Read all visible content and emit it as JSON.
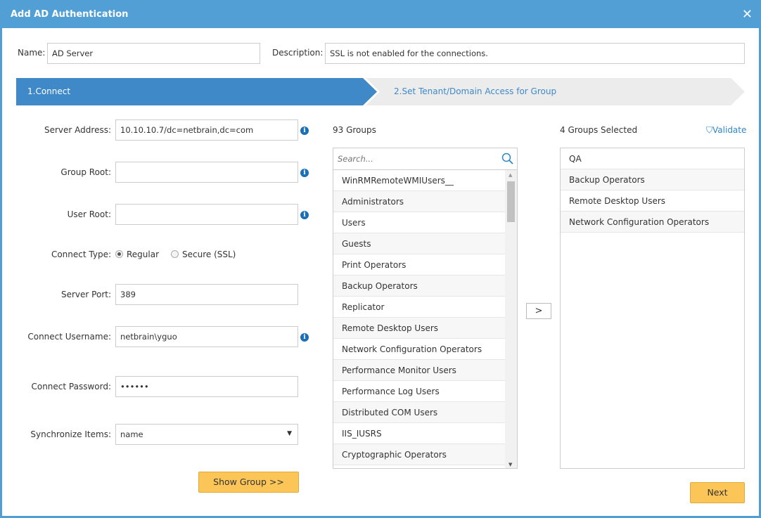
{
  "dialog": {
    "title": "Add AD Authentication",
    "close_icon": "close-icon"
  },
  "name": {
    "label": "Name:",
    "value": "AD Server"
  },
  "description": {
    "label": "Description:",
    "value": "SSL is not enabled for the connections."
  },
  "steps": [
    {
      "label": "1.Connect",
      "active": true
    },
    {
      "label": "2.Set Tenant/Domain Access for Group",
      "active": false
    }
  ],
  "form": {
    "server_address": {
      "label": "Server Address:",
      "value": "10.10.10.7/dc=netbrain,dc=com"
    },
    "group_root": {
      "label": "Group Root:",
      "value": ""
    },
    "user_root": {
      "label": "User Root:",
      "value": ""
    },
    "connect_type": {
      "label": "Connect Type:",
      "options": [
        "Regular",
        "Secure (SSL)"
      ],
      "selected": "Regular"
    },
    "server_port": {
      "label": "Server Port:",
      "value": "389"
    },
    "username": {
      "label": "Connect Username:",
      "value": "netbrain\\yguo"
    },
    "password": {
      "label": "Connect Password:",
      "value": "••••••"
    },
    "sync_items": {
      "label": "Synchronize Items:",
      "value": "name"
    },
    "show_group": "Show Group >>"
  },
  "groups": {
    "count_label": "93 Groups",
    "search_placeholder": "Search...",
    "items": [
      "WinRMRemoteWMIUsers__",
      "Administrators",
      "Users",
      "Guests",
      "Print Operators",
      "Backup Operators",
      "Replicator",
      "Remote Desktop Users",
      "Network Configuration Operators",
      "Performance Monitor Users",
      "Performance Log Users",
      "Distributed COM Users",
      "IIS_IUSRS",
      "Cryptographic Operators"
    ]
  },
  "move_button": ">",
  "selected": {
    "count_label": "4 Groups Selected",
    "validate": "Validate",
    "items": [
      "QA",
      "Backup Operators",
      "Remote Desktop Users",
      "Network Configuration Operators"
    ]
  },
  "next": "Next",
  "colors": {
    "header": "#519fd5",
    "step_active": "#3f89c8",
    "button": "#fcc558"
  }
}
